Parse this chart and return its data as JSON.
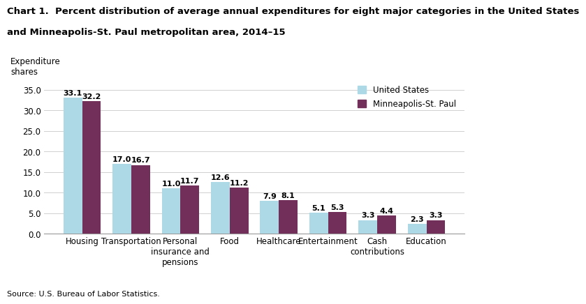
{
  "title_line1": "Chart 1.  Percent distribution of average annual expenditures for eight major categories in the United States",
  "title_line2": "and Minneapolis-St. Paul metropolitan area, 2014–15",
  "ylabel": "Expenditure\nshares",
  "source": "Source: U.S. Bureau of Labor Statistics.",
  "categories": [
    "Housing",
    "Transportation",
    "Personal\ninsurance and\npensions",
    "Food",
    "Healthcare",
    "Entertainment",
    "Cash\ncontributions",
    "Education"
  ],
  "us_values": [
    33.1,
    17.0,
    11.0,
    12.6,
    7.9,
    5.1,
    3.3,
    2.3
  ],
  "msp_values": [
    32.2,
    16.7,
    11.7,
    11.2,
    8.1,
    5.3,
    4.4,
    3.3
  ],
  "us_color": "#add8e6",
  "msp_color": "#722F5A",
  "us_label": "United States",
  "msp_label": "Minneapolis-St. Paul",
  "ylim": [
    0,
    38
  ],
  "yticks": [
    0.0,
    5.0,
    10.0,
    15.0,
    20.0,
    25.0,
    30.0,
    35.0
  ],
  "bar_width": 0.38,
  "title_fontsize": 9.5,
  "label_fontsize": 8.5,
  "tick_fontsize": 8.5,
  "value_fontsize": 8,
  "source_fontsize": 8,
  "background_color": "#ffffff"
}
